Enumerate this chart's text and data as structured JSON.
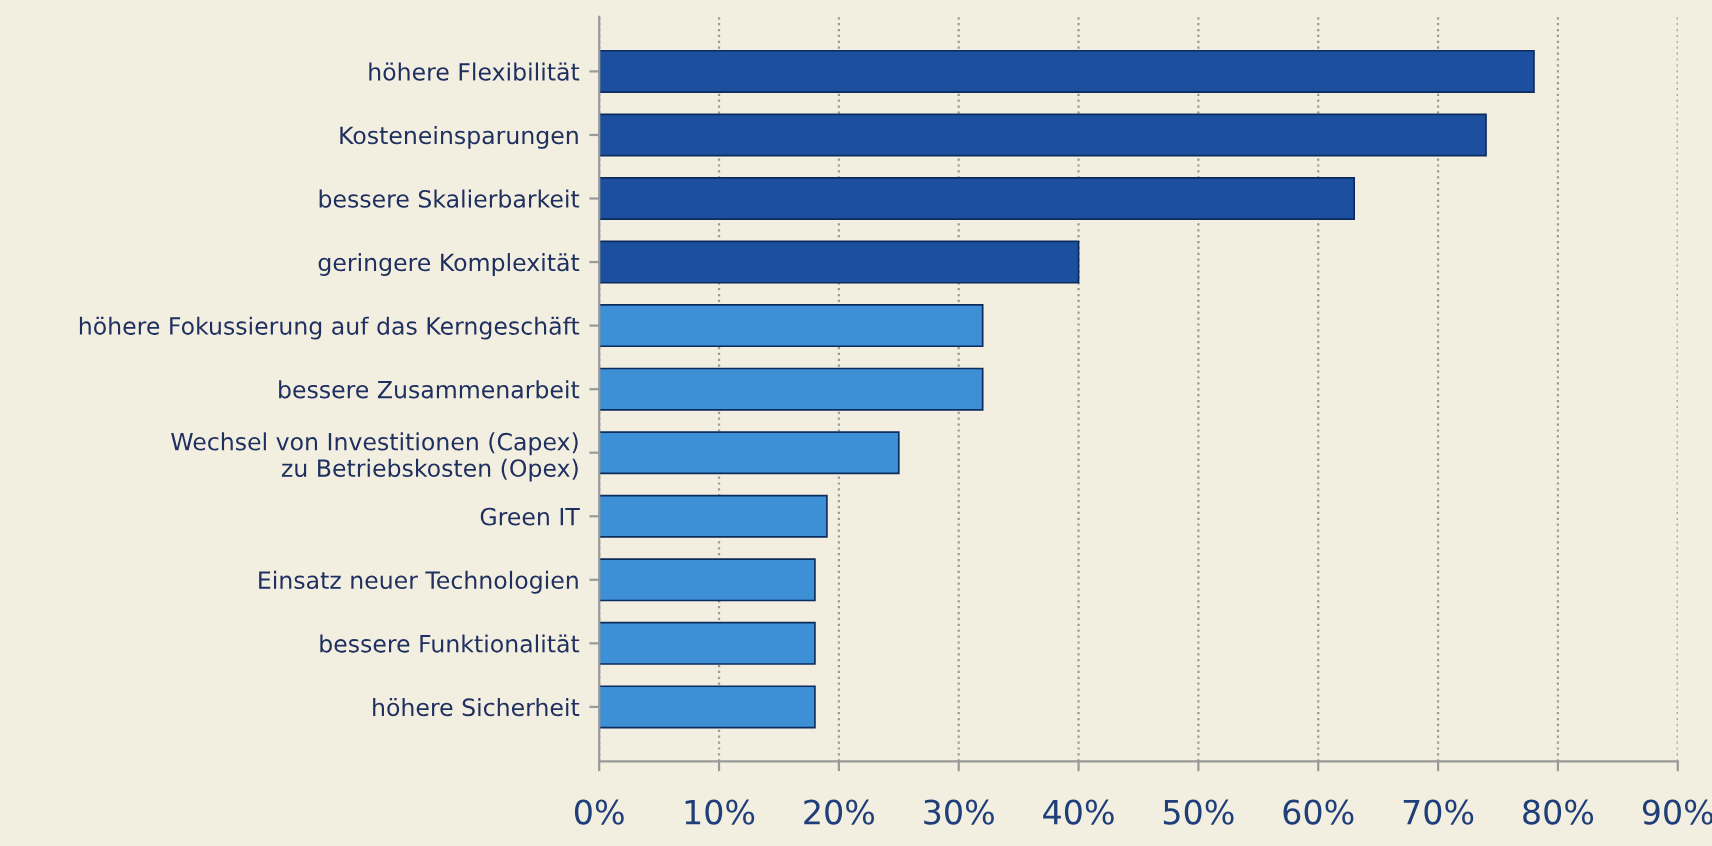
{
  "chart_data": {
    "type": "bar",
    "orientation": "horizontal",
    "categories": [
      "höhere Flexibilität",
      "Kosteneinsparungen",
      "bessere Skalierbarkeit",
      "geringere Komplexität",
      "höhere Fokussierung auf das Kerngeschäft",
      "bessere Zusammenarbeit",
      "Wechsel von Investitionen (Capex)\nzu Betriebskosten (Opex)",
      "Green IT",
      "Einsatz neuer Technologien",
      "bessere Funktionalität",
      "höhere Sicherheit"
    ],
    "values": [
      78,
      74,
      63,
      40,
      32,
      32,
      25,
      19,
      18,
      18,
      18
    ],
    "colors": [
      "#1c4f9e",
      "#1c4f9e",
      "#1c4f9e",
      "#1c4f9e",
      "#3d8fd6",
      "#3d8fd6",
      "#3d8fd6",
      "#3d8fd6",
      "#3d8fd6",
      "#3d8fd6",
      "#3d8fd6"
    ],
    "xlim": [
      0,
      90
    ],
    "xticks": [
      {
        "value": 0,
        "label": "0%"
      },
      {
        "value": 10,
        "label": "10%"
      },
      {
        "value": 20,
        "label": "20%"
      },
      {
        "value": 30,
        "label": "30%"
      },
      {
        "value": 40,
        "label": "40%"
      },
      {
        "value": 50,
        "label": "50%"
      },
      {
        "value": 60,
        "label": "60%"
      },
      {
        "value": 70,
        "label": "70%"
      },
      {
        "value": 80,
        "label": "80%"
      },
      {
        "value": 90,
        "label": "90%"
      }
    ],
    "grid": "x"
  }
}
